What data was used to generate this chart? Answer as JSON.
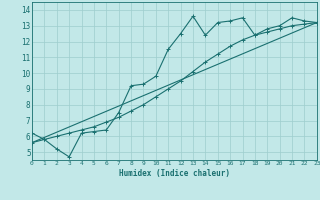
{
  "title": "",
  "xlabel": "Humidex (Indice chaleur)",
  "bg_color": "#c2e8e8",
  "line_color": "#1a7070",
  "xlim": [
    0,
    23
  ],
  "ylim": [
    4.5,
    14.5
  ],
  "xticks": [
    0,
    1,
    2,
    3,
    4,
    5,
    6,
    7,
    8,
    9,
    10,
    11,
    12,
    13,
    14,
    15,
    16,
    17,
    18,
    19,
    20,
    21,
    22,
    23
  ],
  "yticks": [
    5,
    6,
    7,
    8,
    9,
    10,
    11,
    12,
    13,
    14
  ],
  "series1_x": [
    0,
    1,
    2,
    3,
    4,
    5,
    6,
    7,
    8,
    9,
    10,
    11,
    12,
    13,
    14,
    15,
    16,
    17,
    18,
    19,
    20,
    21,
    22,
    23
  ],
  "series1_y": [
    6.2,
    5.8,
    5.2,
    4.7,
    6.2,
    6.3,
    6.4,
    7.5,
    9.2,
    9.3,
    9.8,
    11.5,
    12.5,
    13.6,
    12.4,
    13.2,
    13.3,
    13.5,
    12.4,
    12.8,
    13.0,
    13.5,
    13.3,
    13.2
  ],
  "series2_x": [
    0,
    1,
    2,
    3,
    4,
    5,
    6,
    7,
    8,
    9,
    10,
    11,
    12,
    13,
    14,
    15,
    16,
    17,
    18,
    19,
    20,
    21,
    22,
    23
  ],
  "series2_y": [
    5.6,
    5.8,
    6.0,
    6.2,
    6.4,
    6.6,
    6.9,
    7.2,
    7.6,
    8.0,
    8.5,
    9.0,
    9.5,
    10.1,
    10.7,
    11.2,
    11.7,
    12.1,
    12.4,
    12.6,
    12.8,
    13.0,
    13.1,
    13.2
  ],
  "series3_x": [
    0,
    23
  ],
  "series3_y": [
    5.6,
    13.2
  ]
}
